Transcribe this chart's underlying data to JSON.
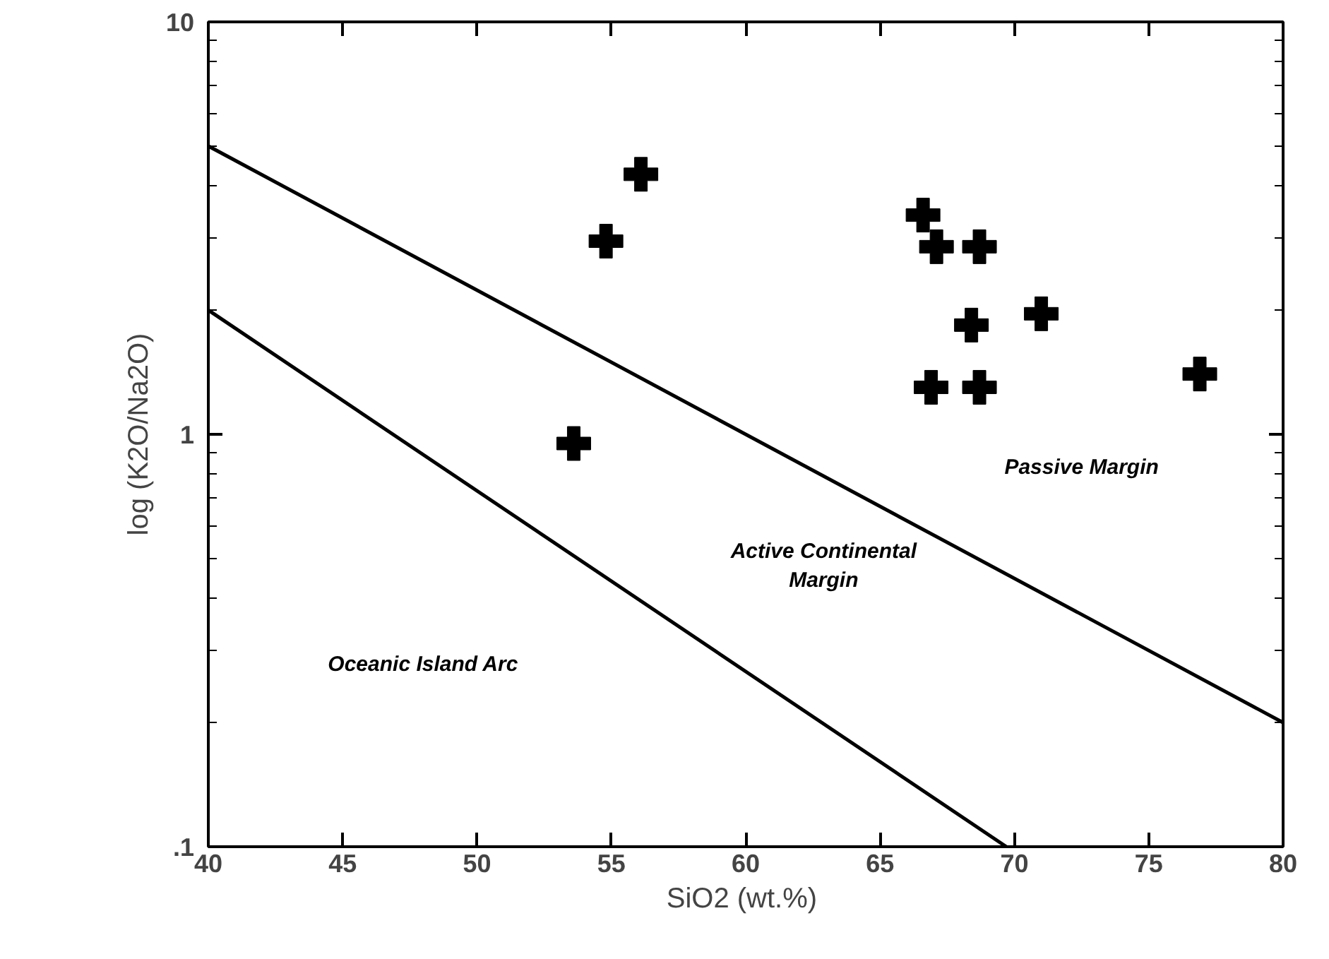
{
  "chart_data": {
    "type": "scatter",
    "xlabel": "SiO2  (wt.%)",
    "ylabel": "log (K2O/Na2O)",
    "log": "y",
    "xlim": [
      40,
      80
    ],
    "ylim": [
      0.1,
      10
    ],
    "xticks": [
      40,
      45,
      50,
      55,
      60,
      65,
      70,
      75,
      80
    ],
    "yticks": [
      {
        "value": 0.1,
        "label": ".1"
      },
      1,
      10
    ],
    "grid": false,
    "series": [
      {
        "type": "scatter",
        "marker": "cross",
        "color": "#000000",
        "x": [
          54.8,
          56.1,
          53.6,
          66.6,
          67.1,
          68.7,
          68.4,
          71.0,
          66.9,
          68.7,
          76.9
        ],
        "values": [
          2.94,
          4.27,
          0.95,
          3.4,
          2.85,
          2.85,
          1.84,
          1.96,
          1.3,
          1.3,
          1.4
        ]
      },
      {
        "type": "line",
        "color": "#000000",
        "line_style": "solid",
        "x": [
          40,
          80
        ],
        "values": [
          5,
          0.2
        ]
      },
      {
        "type": "line",
        "color": "#000000",
        "line_style": "solid",
        "x": [
          40,
          69.7
        ],
        "values": [
          2,
          0.1
        ]
      }
    ],
    "annotations": [
      "Passive Margin",
      "Active Continental\nMargin",
      "Oceanic Island Arc"
    ]
  }
}
